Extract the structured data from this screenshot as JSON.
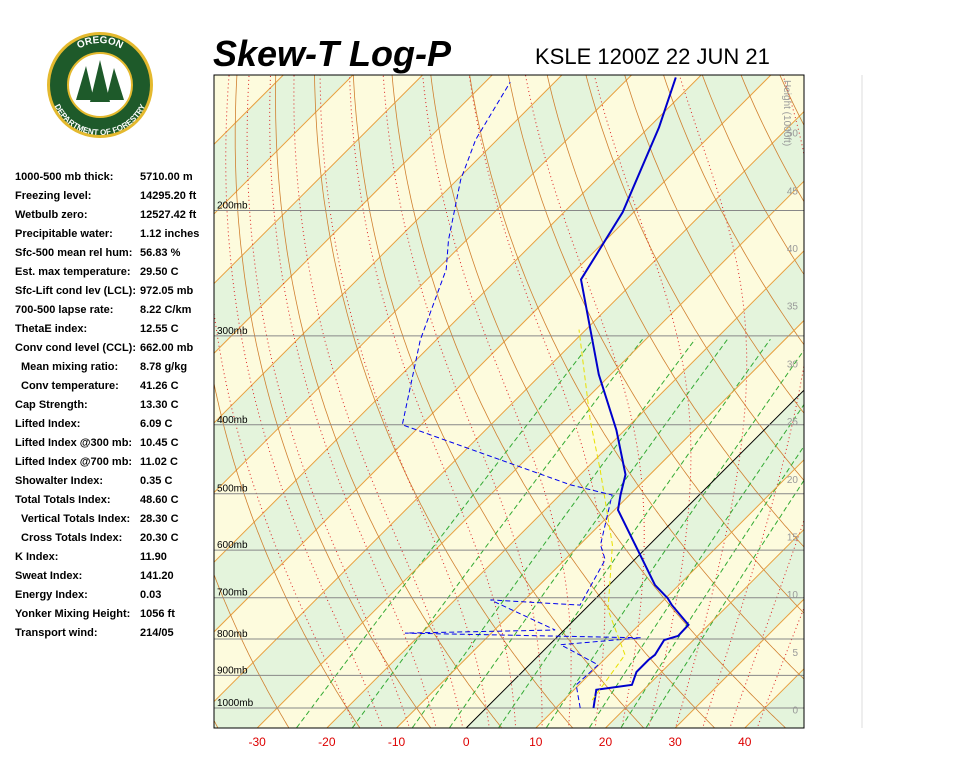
{
  "logo": {
    "top": "OREGON",
    "bottom": "DEPARTMENT OF FORESTRY"
  },
  "stats": [
    {
      "label": "1000-500 mb thick:",
      "value": "5710.00 m"
    },
    {
      "label": "Freezing level:",
      "value": "14295.20 ft"
    },
    {
      "label": "Wetbulb zero:",
      "value": "12527.42 ft"
    },
    {
      "label": "Precipitable water:",
      "value": "1.12 inches"
    },
    {
      "label": "Sfc-500 mean rel hum:",
      "value": "56.83 %"
    },
    {
      "label": "Est. max temperature:",
      "value": "29.50 C"
    },
    {
      "label": "Sfc-Lift cond lev (LCL):",
      "value": "972.05 mb"
    },
    {
      "label": "700-500 lapse rate:",
      "value": "8.22 C/km"
    },
    {
      "label": "ThetaE index:",
      "value": "12.55 C"
    },
    {
      "label": "Conv cond level (CCL):",
      "value": "662.00 mb"
    },
    {
      "label": "Mean mixing ratio:",
      "value": "8.78 g/kg",
      "indent": true
    },
    {
      "label": "Conv temperature:",
      "value": "41.26 C",
      "indent": true
    },
    {
      "label": "Cap Strength:",
      "value": "13.30 C"
    },
    {
      "label": "Lifted Index:",
      "value": "6.09 C"
    },
    {
      "label": "Lifted Index @300 mb:",
      "value": "10.45 C"
    },
    {
      "label": "Lifted Index @700 mb:",
      "value": "11.02 C"
    },
    {
      "label": "Showalter Index:",
      "value": "0.35 C"
    },
    {
      "label": "Total Totals Index:",
      "value": "48.60 C"
    },
    {
      "label": "Vertical Totals Index:",
      "value": "28.30 C",
      "indent": true
    },
    {
      "label": "Cross Totals Index:",
      "value": "20.30 C",
      "indent": true
    },
    {
      "label": "K Index:",
      "value": "11.90"
    },
    {
      "label": "Sweat Index:",
      "value": "141.20"
    },
    {
      "label": "Energy Index:",
      "value": "0.03"
    },
    {
      "label": "Yonker Mixing Height:",
      "value": "1056 ft"
    },
    {
      "label": "Transport wind:",
      "value": "214/05"
    }
  ],
  "chart_data": {
    "type": "skewt",
    "title": "Skew-T Log-P",
    "subtitle": "KSLE 1200Z 22 JUN 21",
    "xlim": [
      -36.2,
      48.5
    ],
    "xticks": [
      -30,
      -20,
      -10,
      0,
      10,
      20,
      30,
      40
    ],
    "ylim": [
      1067,
      129
    ],
    "log_y": true,
    "yticks": [
      {
        "value": 200,
        "label": "200mb"
      },
      {
        "value": 300,
        "label": "300mb"
      },
      {
        "value": 400,
        "label": "400mb"
      },
      {
        "value": 500,
        "label": "500mb"
      },
      {
        "value": 600,
        "label": "600mb"
      },
      {
        "value": 700,
        "label": "700mb"
      },
      {
        "value": 800,
        "label": "800mb"
      },
      {
        "value": 900,
        "label": "900mb"
      },
      {
        "value": 1000,
        "label": "1000mb"
      }
    ],
    "y2label": "Height (1000ft)",
    "y2lim": [
      -1.6,
      55.0
    ],
    "y2ticks": [
      0,
      5,
      10,
      15,
      20,
      25,
      30,
      35,
      40,
      45,
      50
    ],
    "series": [
      {
        "color": "#0000cc",
        "style": "solid",
        "y": [
          1000,
          943,
          928,
          890,
          856,
          842,
          803,
          792,
          764,
          717,
          701,
          672,
          600,
          527,
          502,
          470,
          407,
          340,
          250,
          201,
          153,
          130
        ],
        "values": [
          15.4,
          13.2,
          17.6,
          16.4,
          16.4,
          16.6,
          15.8,
          17.2,
          17.1,
          11.9,
          10.3,
          6.6,
          -0.9,
          -9.5,
          -11.3,
          -13.5,
          -21.2,
          -31.7,
          -47.9,
          -51.6,
          -58.5,
          -63.3
        ]
      },
      {
        "color": "#0000ee",
        "style": "dashed",
        "y": [
          1000,
          928,
          870,
          815,
          797,
          785,
          777,
          705,
          717,
          619,
          590,
          502,
          486,
          400,
          304,
          242,
          220,
          181,
          159,
          132
        ],
        "values": [
          13.5,
          9.6,
          9.9,
          1.6,
          12.1,
          -22.4,
          -1.3,
          -14.9,
          -1.3,
          -4.2,
          -7.0,
          -12.5,
          -19.9,
          -52.7,
          -62.3,
          -68.7,
          -72.6,
          -79.5,
          -83.1,
          -86.4
        ]
      },
      {
        "color": "#e8e000",
        "style": "dashed",
        "y": [
          975,
          842,
          728,
          590,
          463,
          394,
          294
        ],
        "values": [
          14.1,
          12.3,
          3.4,
          -5.3,
          -17.8,
          -26.4,
          -41.0
        ]
      }
    ]
  }
}
